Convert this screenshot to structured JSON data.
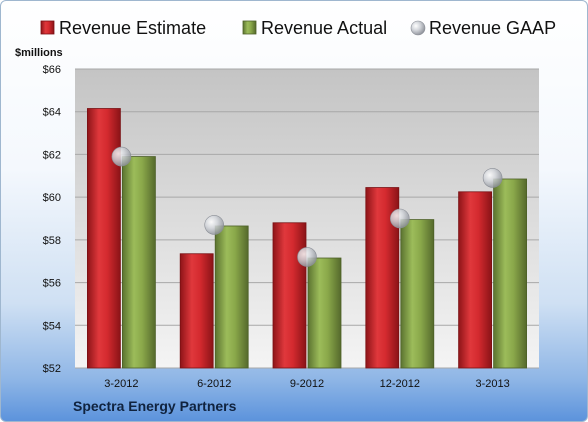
{
  "company": "Spectra Energy Partners",
  "chart_data": {
    "type": "bar",
    "ylabel": "$millions",
    "ylim": [
      52,
      66
    ],
    "yticks": [
      52,
      54,
      56,
      58,
      60,
      62,
      64,
      66
    ],
    "ytick_labels": [
      "$52",
      "$54",
      "$56",
      "$58",
      "$60",
      "$62",
      "$64",
      "$66"
    ],
    "categories": [
      "3-2012",
      "6-2012",
      "9-2012",
      "12-2012",
      "3-2013"
    ],
    "legend_position": "top",
    "grid": true,
    "series": [
      {
        "name": "Revenue Estimate",
        "kind": "bar",
        "color": "#d42a2f",
        "values": [
          64.15,
          57.35,
          58.8,
          60.45,
          60.25
        ]
      },
      {
        "name": "Revenue Actual",
        "kind": "bar",
        "color": "#8aa84a",
        "values": [
          61.9,
          58.65,
          57.15,
          58.95,
          60.85
        ]
      },
      {
        "name": "Revenue GAAP",
        "kind": "marker",
        "color": "#b8bcc4",
        "values": [
          61.9,
          58.7,
          57.2,
          59.0,
          60.9
        ]
      }
    ]
  }
}
